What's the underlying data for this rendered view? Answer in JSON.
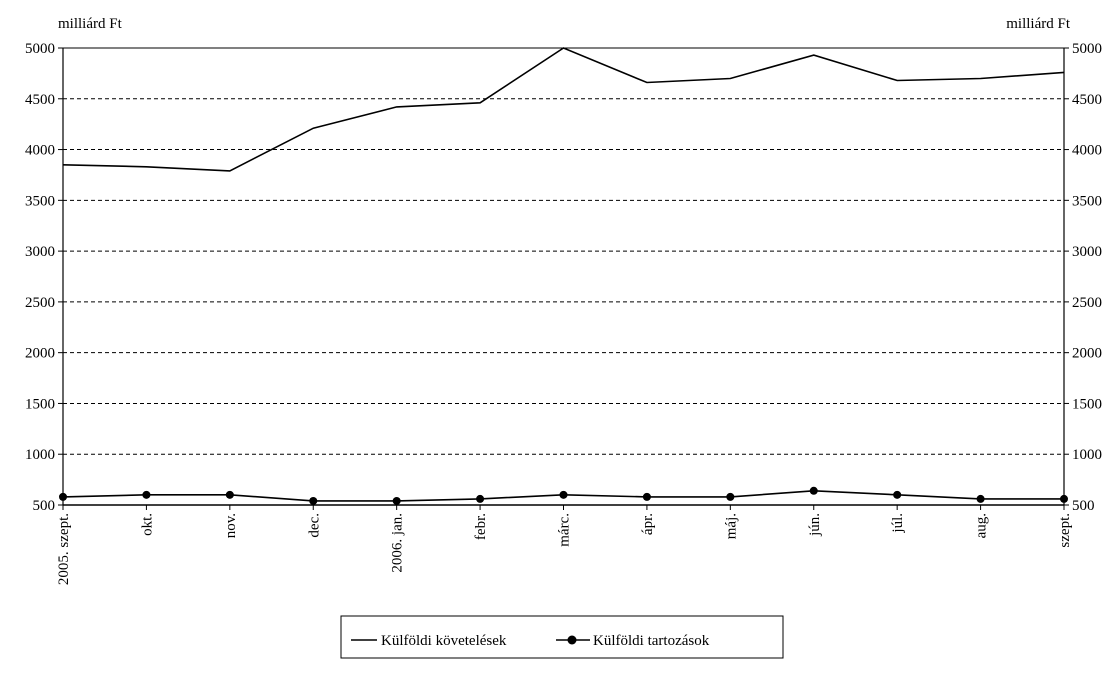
{
  "chart_data": {
    "type": "line",
    "y_unit_left": "milliárd Ft",
    "y_unit_right": "milliárd Ft",
    "ylim": [
      500,
      5000
    ],
    "yticks": [
      500,
      1000,
      1500,
      2000,
      2500,
      3000,
      3500,
      4000,
      4500,
      5000
    ],
    "grid": "horizontal dashed",
    "legend_position": "bottom",
    "categories": [
      "2005. szept.",
      "okt.",
      "nov.",
      "dec.",
      "2006. jan.",
      "febr.",
      "márc.",
      "ápr.",
      "máj.",
      "jún.",
      "júl.",
      "aug.",
      "szept."
    ],
    "series": [
      {
        "name": "Külföldi követelések",
        "marker": "none",
        "values": [
          3850,
          3830,
          3790,
          4210,
          4420,
          4460,
          5000,
          4660,
          4700,
          4930,
          4680,
          4700,
          4760
        ]
      },
      {
        "name": "Külföldi tartozások",
        "marker": "circle",
        "values": [
          580,
          600,
          600,
          540,
          540,
          560,
          600,
          580,
          580,
          640,
          600,
          560,
          560
        ]
      }
    ]
  }
}
